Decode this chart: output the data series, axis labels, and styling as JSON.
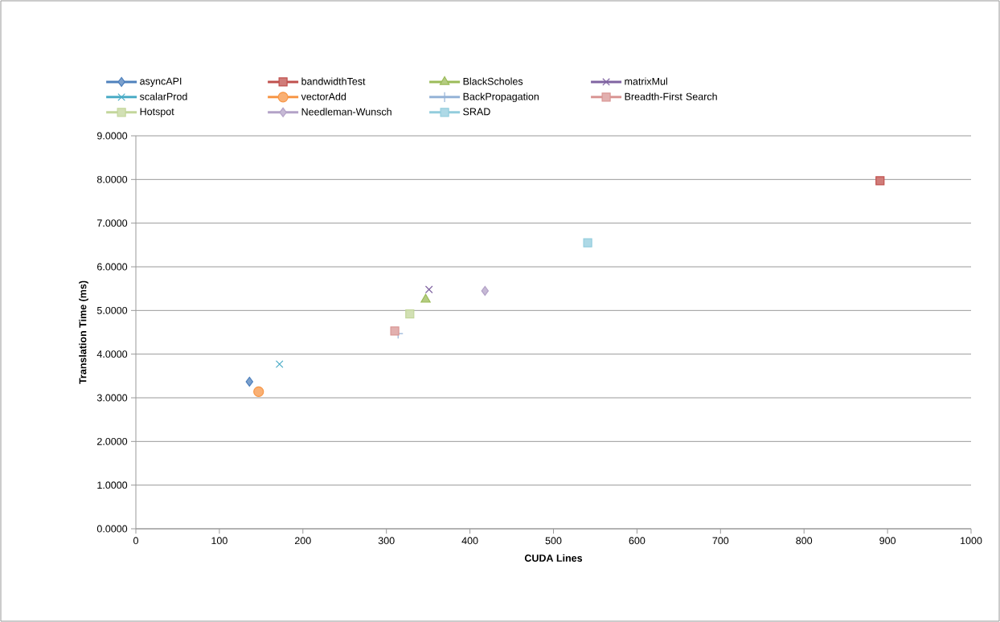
{
  "chart_data": {
    "type": "scatter",
    "xlabel": "CUDA Lines",
    "ylabel": "Translation Time (ms)",
    "xlim": [
      0,
      1000
    ],
    "xticks": [
      0,
      100,
      200,
      300,
      400,
      500,
      600,
      700,
      800,
      900,
      1000
    ],
    "ylim": [
      0,
      9
    ],
    "yticks": [
      {
        "value": 0,
        "label": "0.0000"
      },
      {
        "value": 1,
        "label": "1.0000"
      },
      {
        "value": 2,
        "label": "2.0000"
      },
      {
        "value": 3,
        "label": "3.0000"
      },
      {
        "value": 4,
        "label": "4.0000"
      },
      {
        "value": 5,
        "label": "5.0000"
      },
      {
        "value": 6,
        "label": "6.0000"
      },
      {
        "value": 7,
        "label": "7.0000"
      },
      {
        "value": 8,
        "label": "8.0000"
      },
      {
        "value": 9,
        "label": "9.0000"
      }
    ],
    "grid": "y",
    "legend": "top",
    "series": [
      {
        "name": "asyncAPI",
        "color": "#4f81bd",
        "marker": "diamond",
        "x": [
          136
        ],
        "values": [
          3.37
        ]
      },
      {
        "name": "bandwidthTest",
        "color": "#c0504d",
        "marker": "square",
        "x": [
          891
        ],
        "values": [
          7.97
        ]
      },
      {
        "name": "BlackScholes",
        "color": "#9bbb59",
        "marker": "triangle",
        "x": [
          347
        ],
        "values": [
          5.25
        ]
      },
      {
        "name": "matrixMul",
        "color": "#8064a2",
        "marker": "cross",
        "x": [
          351
        ],
        "values": [
          5.48
        ]
      },
      {
        "name": "scalarProd",
        "color": "#4bacc6",
        "marker": "cross",
        "x": [
          172
        ],
        "values": [
          3.77
        ]
      },
      {
        "name": "vectorAdd",
        "color": "#f79646",
        "marker": "circle",
        "x": [
          147
        ],
        "values": [
          3.14
        ]
      },
      {
        "name": "BackPropagation",
        "color": "#95b3d7",
        "marker": "plus",
        "x": [
          314
        ],
        "values": [
          4.47
        ]
      },
      {
        "name": "Breadth-First Search",
        "color": "#d99694",
        "marker": "square",
        "x": [
          310
        ],
        "values": [
          4.53
        ]
      },
      {
        "name": "Hotspot",
        "color": "#c3d69b",
        "marker": "square",
        "x": [
          328
        ],
        "values": [
          4.92
        ]
      },
      {
        "name": "Needleman-Wunsch",
        "color": "#b3a2c7",
        "marker": "diamond",
        "x": [
          418
        ],
        "values": [
          5.45
        ]
      },
      {
        "name": "SRAD",
        "color": "#93cddd",
        "marker": "square",
        "x": [
          541
        ],
        "values": [
          6.55
        ]
      }
    ]
  }
}
